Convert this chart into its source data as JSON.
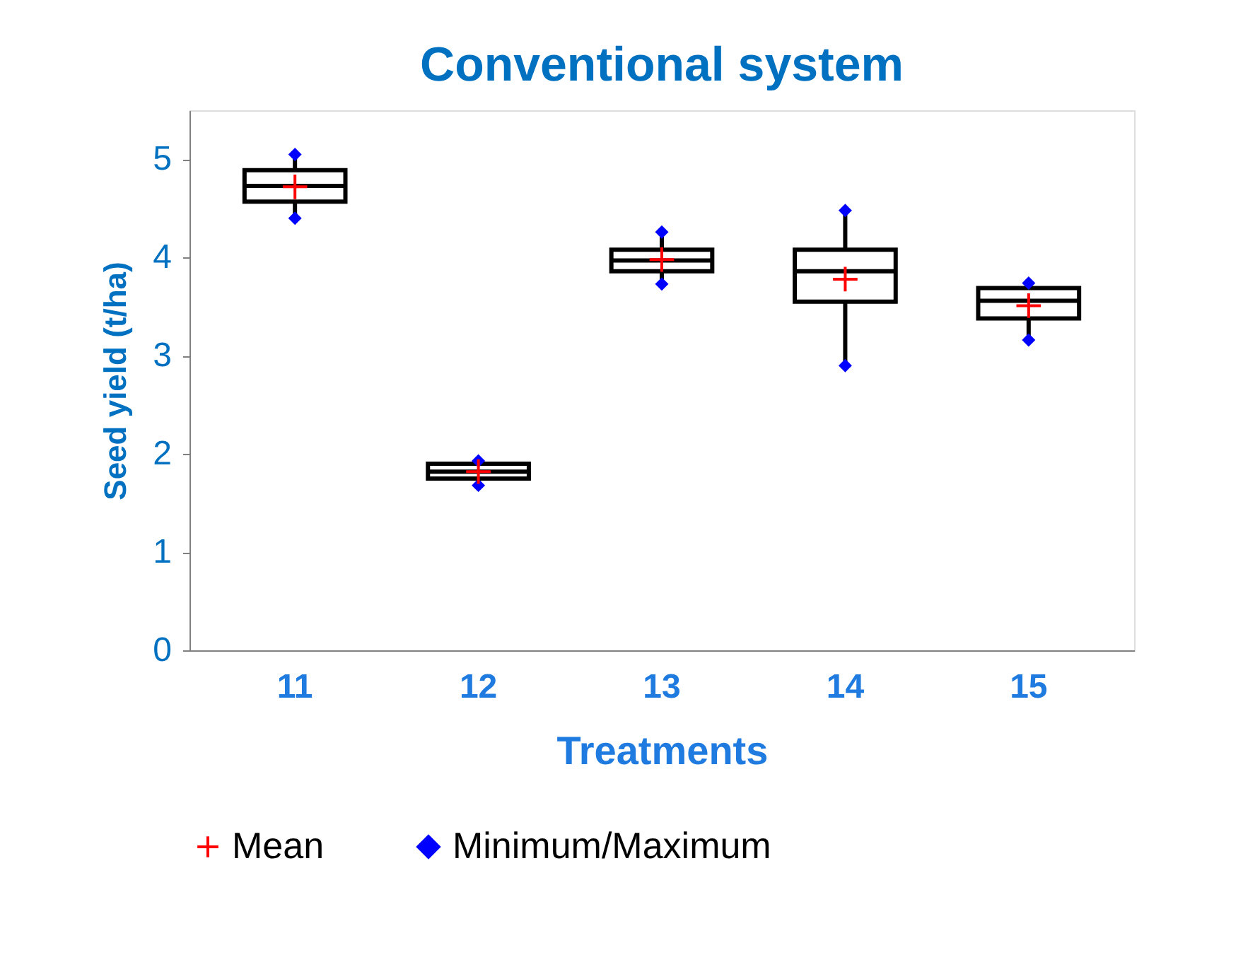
{
  "chart_data": {
    "type": "box",
    "title": "Conventional system",
    "xlabel": "Treatments",
    "ylabel": "Seed yield (t/ha)",
    "categories": [
      "11",
      "12",
      "13",
      "14",
      "15"
    ],
    "boxes": [
      {
        "low": 4.4,
        "q1": 4.57,
        "median": 4.73,
        "q3": 4.89,
        "high": 5.05
      },
      {
        "low": 1.68,
        "q1": 1.75,
        "median": 1.82,
        "q3": 1.9,
        "high": 1.93
      },
      {
        "low": 3.73,
        "q1": 3.86,
        "median": 3.97,
        "q3": 4.08,
        "high": 4.26
      },
      {
        "low": 2.9,
        "q1": 3.55,
        "median": 3.86,
        "q3": 4.08,
        "high": 4.48
      },
      {
        "low": 3.16,
        "q1": 3.38,
        "median": 3.56,
        "q3": 3.69,
        "high": 3.74
      }
    ],
    "series": [
      {
        "type": "scatter",
        "name": "Mean",
        "color": "#ff0000",
        "marker": "cross",
        "x": [
          "11",
          "12",
          "13",
          "14",
          "15"
        ],
        "values": [
          4.72,
          1.82,
          3.98,
          3.78,
          3.51
        ]
      },
      {
        "type": "scatter",
        "name": "Minimum/Maximum",
        "color": "#0000ff",
        "marker": "diamond",
        "x": [
          "11",
          "12",
          "13",
          "14",
          "15",
          "11",
          "12",
          "13",
          "14",
          "15"
        ],
        "values": [
          4.4,
          1.68,
          3.73,
          2.9,
          3.16,
          5.05,
          1.93,
          4.26,
          4.48,
          3.74
        ]
      }
    ],
    "ylim": [
      0,
      5.5
    ],
    "yticks": [
      0,
      1,
      2,
      3,
      4,
      5
    ],
    "grid": false,
    "legend": "bottom"
  }
}
